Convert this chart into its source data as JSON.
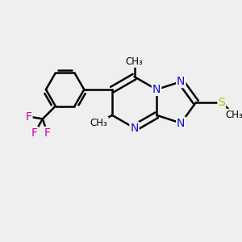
{
  "bg_color": "#efefef",
  "bond_color": "#000000",
  "N_color": "#1111cc",
  "S_color": "#bbbb00",
  "F_color": "#cc00aa",
  "bond_width": 1.8,
  "figsize": [
    3.0,
    3.0
  ],
  "dpi": 100,
  "xlim": [
    0,
    10
  ],
  "ylim": [
    0,
    10
  ]
}
